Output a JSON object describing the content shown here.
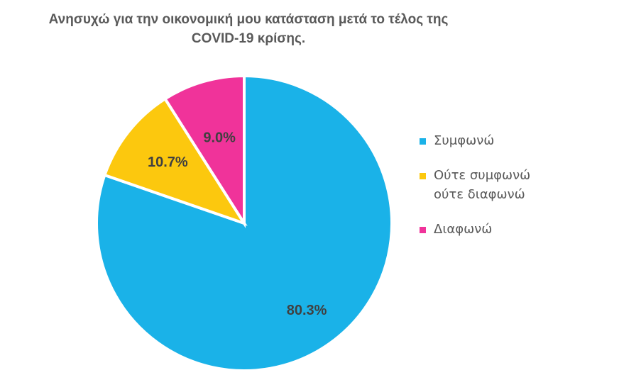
{
  "chart_data": {
    "type": "pie",
    "title_lines": [
      "Ανησυχώ για την οικονομική μου κατάσταση  μετά το τέλος της",
      "COVID-19 κρίσης."
    ],
    "slices": [
      {
        "name_lines": [
          "Συμφωνώ"
        ],
        "value": 80.3,
        "label": "80.3%",
        "color": "#1AB2E8"
      },
      {
        "name_lines": [
          "Ούτε συμφωνώ",
          "ούτε διαφωνώ"
        ],
        "value": 10.7,
        "label": "10.7%",
        "color": "#FCC80E"
      },
      {
        "name_lines": [
          "Διαφωνώ"
        ],
        "value": 9.0,
        "label": "9.0%",
        "color": "#F0339A"
      }
    ],
    "start": "12 o'clock",
    "direction": "clockwise",
    "legend_position": "right"
  }
}
